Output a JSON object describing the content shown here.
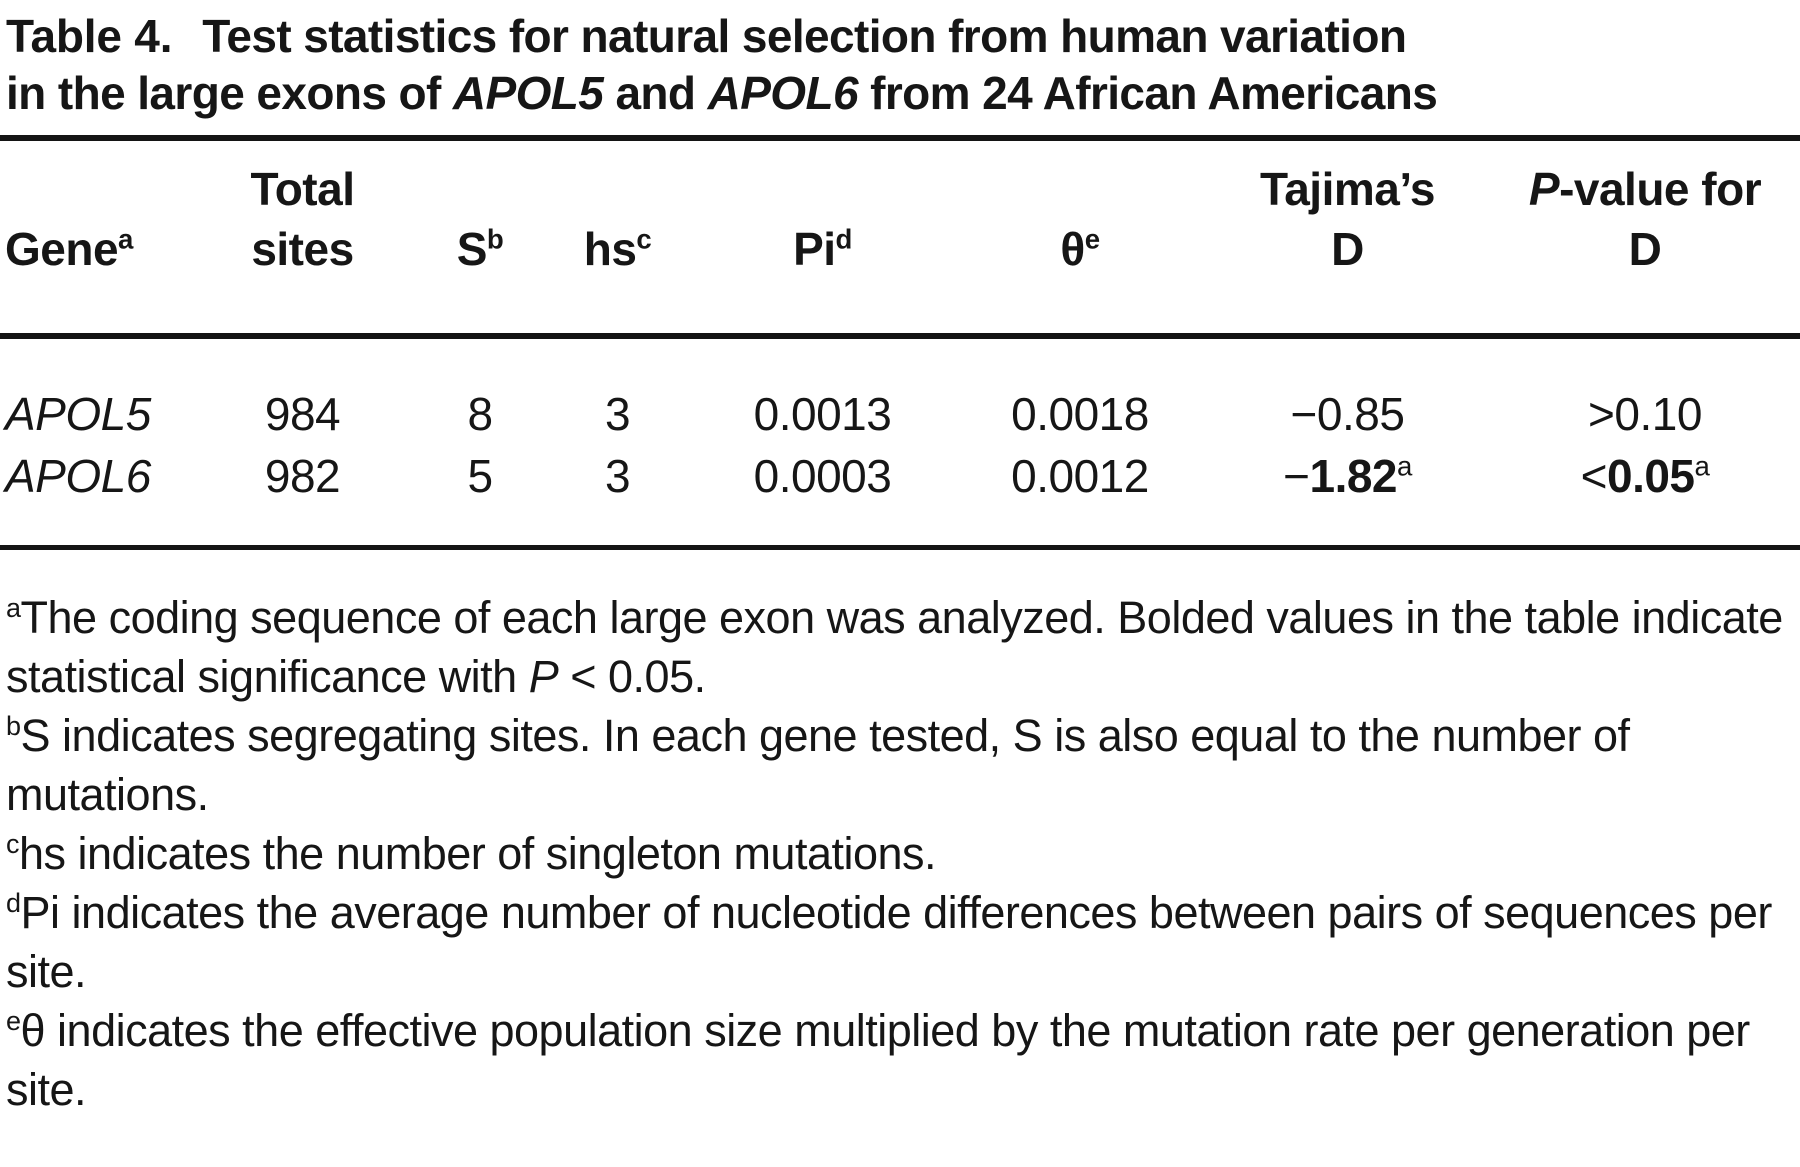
{
  "title": {
    "label": "Table 4.",
    "line1_rest": "Test statistics for natural selection from human variation",
    "line2_pre": "in the large exons of ",
    "gene1": "APOL5",
    "line2_mid": " and ",
    "gene2": "APOL6",
    "line2_post": " from 24 African Americans"
  },
  "table": {
    "columns": [
      {
        "label": "Gene",
        "sup": "a"
      },
      {
        "line1": "Total",
        "label": "sites",
        "sup": ""
      },
      {
        "label": "S",
        "sup": "b"
      },
      {
        "label": "hs",
        "sup": "c"
      },
      {
        "label": "Pi",
        "sup": "d"
      },
      {
        "label": "θ",
        "sup": "e"
      },
      {
        "line1": "Tajima’s",
        "label": "D",
        "sup": ""
      },
      {
        "line1_italic": "P",
        "line1": "-value for",
        "label": "D",
        "sup": ""
      }
    ],
    "rows": [
      {
        "gene": "APOL5",
        "total_sites": "984",
        "s": "8",
        "hs": "3",
        "pi": "0.0013",
        "theta": "0.0018",
        "tajima": {
          "prefix": "−",
          "value": "0.85",
          "sup": ""
        },
        "pvalue": {
          "prefix": ">",
          "value": "0.10",
          "sup": ""
        },
        "significant": false
      },
      {
        "gene": "APOL6",
        "total_sites": "982",
        "s": "5",
        "hs": "3",
        "pi": "0.0003",
        "theta": "0.0012",
        "tajima": {
          "prefix": "−",
          "value": "1.82",
          "sup": "a"
        },
        "pvalue": {
          "prefix": "<",
          "value": "0.05",
          "sup": "a"
        },
        "significant": true
      }
    ]
  },
  "footnotes": [
    {
      "sup": "a",
      "pre": "The coding sequence of each large exon was analyzed. Bolded values in the table indicate statistical significance with ",
      "italic": "P",
      "post": " < 0.05."
    },
    {
      "sup": "b",
      "pre": "S indicates segregating sites. In each gene tested, S is also equal to the number of mutations.",
      "italic": "",
      "post": ""
    },
    {
      "sup": "c",
      "pre": "hs indicates the number of singleton mutations.",
      "italic": "",
      "post": ""
    },
    {
      "sup": "d",
      "pre": "Pi indicates the average number of nucleotide differences between pairs of sequences per site.",
      "italic": "",
      "post": ""
    },
    {
      "sup": "e",
      "pre": "θ indicates the effective population size multiplied by the mutation rate per generation per site.",
      "italic": "",
      "post": ""
    }
  ]
}
